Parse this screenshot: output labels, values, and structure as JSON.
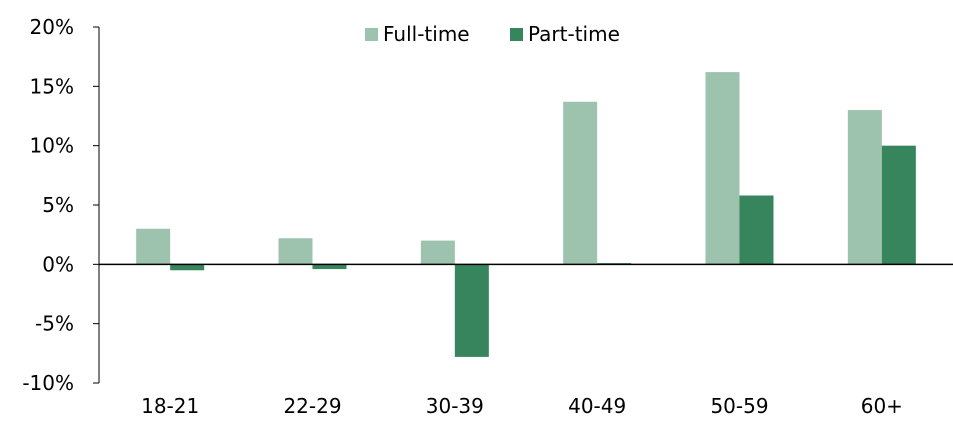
{
  "chart_data": {
    "type": "bar",
    "title": "",
    "xlabel": "",
    "ylabel": "",
    "categories": [
      "18-21",
      "22-29",
      "30-39",
      "40-49",
      "50-59",
      "60+"
    ],
    "series": [
      {
        "name": "Full-time",
        "color": "#9dc3ae",
        "values": [
          3.0,
          2.2,
          2.0,
          13.7,
          16.2,
          13.0
        ]
      },
      {
        "name": "Part-time",
        "color": "#36855c",
        "values": [
          -0.5,
          -0.4,
          -7.8,
          0.1,
          5.8,
          10.0
        ]
      }
    ],
    "ylim": [
      -10,
      20
    ],
    "yticks": [
      -10,
      -5,
      0,
      5,
      10,
      15,
      20
    ],
    "ytick_labels": [
      "-10%",
      "-5%",
      "0%",
      "5%",
      "10%",
      "15%",
      "20%"
    ],
    "grid": false,
    "legend_position": "top-center"
  },
  "colors": {
    "axis": "#000000",
    "text": "#000000"
  }
}
